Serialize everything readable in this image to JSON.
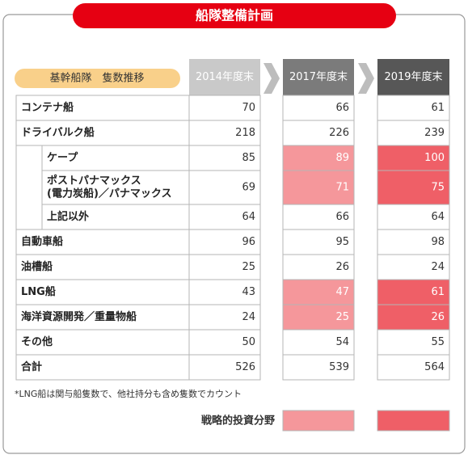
{
  "header": {
    "title": "船隊整備計画",
    "subtitle": "基幹船隊　隻数推移"
  },
  "table": {
    "columns": [
      {
        "label": "2014年度末",
        "header_color": "#c9c9c9"
      },
      {
        "label": "2017年度末",
        "header_color": "#7b7b7b",
        "highlight_color": "#f5979b"
      },
      {
        "label": "2019年度末",
        "header_color": "#575757",
        "highlight_color": "#ef5f67"
      }
    ],
    "rows": [
      {
        "label": [
          "コンテナ船"
        ],
        "values": [
          70,
          66,
          61
        ]
      },
      {
        "label": [
          "ドライバルク船"
        ],
        "values": [
          218,
          226,
          239
        ]
      },
      {
        "label": [
          "ケープ"
        ],
        "sub": true,
        "strategic": true,
        "values": [
          85,
          89,
          100
        ]
      },
      {
        "label": [
          "ポストパナマックス",
          "(電力炭船)／パナマックス"
        ],
        "sub": true,
        "strategic": true,
        "values": [
          69,
          71,
          75
        ]
      },
      {
        "label": [
          "上記以外"
        ],
        "sub": true,
        "values": [
          64,
          66,
          64
        ]
      },
      {
        "label": [
          "自動車船"
        ],
        "values": [
          96,
          95,
          98
        ]
      },
      {
        "label": [
          "油槽船"
        ],
        "values": [
          25,
          26,
          24
        ]
      },
      {
        "label": [
          "LNG船"
        ],
        "strategic": true,
        "values": [
          43,
          47,
          61
        ]
      },
      {
        "label": [
          "海洋資源開発／重量物船"
        ],
        "strategic": true,
        "values": [
          24,
          25,
          26
        ]
      },
      {
        "label": [
          "その他"
        ],
        "values": [
          50,
          54,
          55
        ]
      },
      {
        "label": [
          "合計"
        ],
        "values": [
          526,
          539,
          564
        ]
      }
    ]
  },
  "note": "*LNG船は関与船隻数で、他社持分も含め隻数でカウント",
  "legend": {
    "label": "戦略的投資分野"
  }
}
